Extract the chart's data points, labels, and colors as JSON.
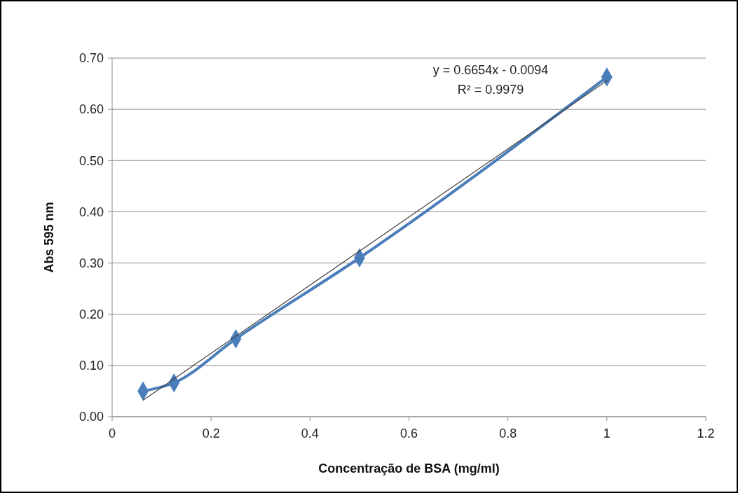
{
  "chart_data": {
    "type": "line",
    "xlabel": "Concentração de BSA (mg/ml)",
    "ylabel": "Abs 595 nm",
    "xlim": [
      0,
      1.2
    ],
    "xticks": [
      0,
      0.2,
      0.4,
      0.6,
      0.8,
      1,
      1.2
    ],
    "ylim": [
      0,
      0.7
    ],
    "yticks": [
      {
        "value": 0,
        "label": "0.00"
      },
      {
        "value": 0.1,
        "label": "0.10"
      },
      {
        "value": 0.2,
        "label": "0.20"
      },
      {
        "value": 0.3,
        "label": "0.30"
      },
      {
        "value": 0.4,
        "label": "0.40"
      },
      {
        "value": 0.5,
        "label": "0.50"
      },
      {
        "value": 0.6,
        "label": "0.60"
      },
      {
        "value": 0.7,
        "label": "0.70"
      }
    ],
    "grid": "y",
    "series": [
      {
        "color": "#4a7ebb",
        "x": [
          0.0625,
          0.125,
          0.25,
          0.5,
          1
        ],
        "values": [
          0.05,
          0.066,
          0.152,
          0.31,
          0.663
        ],
        "marker": "diamond"
      },
      {
        "color": "#404040",
        "x": [
          0.0625,
          1
        ],
        "values": [
          0.0322,
          0.656
        ],
        "marker": "none"
      }
    ],
    "annotations": [
      "y = 0.6654x - 0.0094",
      "R² = 0.9979"
    ]
  }
}
